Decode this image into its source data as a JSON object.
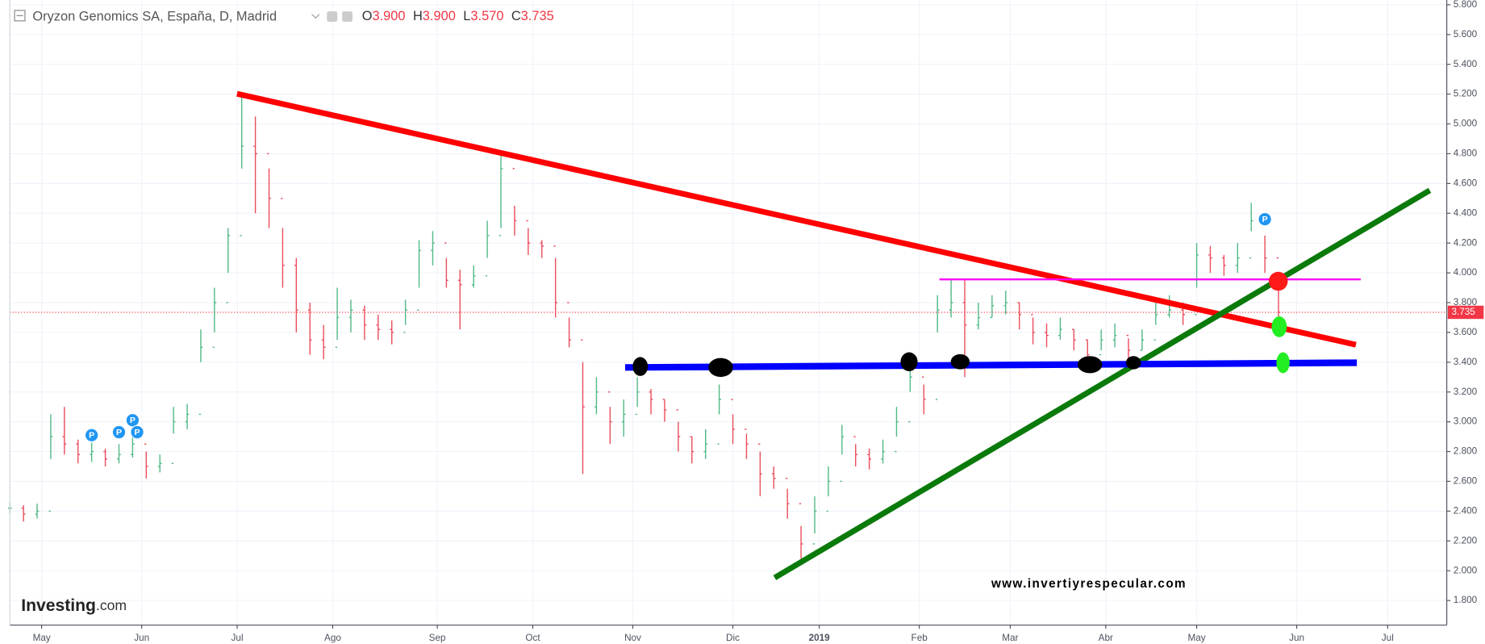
{
  "chart_data": {
    "type": "ohlc",
    "title": "Oryzon Genomics SA, España, D, Madrid",
    "legend_ohlc": [
      {
        "label": "O",
        "value": "3.900"
      },
      {
        "label": "H",
        "value": "3.900"
      },
      {
        "label": "L",
        "value": "3.570"
      },
      {
        "label": "C",
        "value": "3.735"
      }
    ],
    "x": [
      0,
      3,
      6,
      9,
      12,
      15,
      18,
      21,
      24,
      27,
      30,
      33,
      36,
      39,
      42,
      45,
      48,
      51,
      54,
      57,
      60,
      63,
      66,
      69,
      72,
      75,
      78,
      81,
      84,
      87,
      90,
      93,
      96,
      99,
      102,
      105,
      108,
      111,
      114,
      117,
      120,
      123,
      126,
      129,
      132,
      135,
      138,
      141,
      144,
      147,
      150,
      153,
      156,
      159,
      162,
      165,
      168,
      171,
      174,
      177,
      180,
      183,
      186,
      189,
      192,
      195,
      198,
      201,
      204,
      207,
      210,
      213,
      216,
      219,
      222,
      225,
      228,
      231,
      234,
      237,
      240,
      243,
      246,
      249,
      252,
      255,
      258,
      261,
      264,
      267,
      270,
      273,
      276,
      279
    ],
    "high": [
      2.46,
      2.44,
      2.45,
      3.05,
      3.1,
      2.88,
      2.86,
      2.82,
      2.85,
      2.92,
      2.8,
      2.78,
      3.1,
      3.12,
      3.62,
      3.9,
      4.3,
      5.18,
      5.05,
      4.7,
      4.3,
      4.1,
      3.8,
      3.65,
      3.9,
      3.82,
      3.78,
      3.72,
      3.68,
      3.82,
      4.22,
      4.28,
      4.1,
      4.02,
      4.05,
      4.35,
      4.82,
      4.45,
      4.3,
      4.22,
      4.1,
      3.7,
      3.4,
      3.3,
      3.1,
      3.15,
      3.3,
      3.22,
      3.15,
      3.0,
      2.9,
      2.95,
      3.25,
      3.05,
      2.92,
      2.8,
      2.7,
      2.55,
      2.3,
      2.5,
      2.7,
      2.98,
      2.85,
      2.82,
      2.88,
      3.1,
      3.4,
      3.25,
      3.85,
      3.95,
      3.95,
      3.8,
      3.85,
      3.88,
      3.8,
      3.7,
      3.66,
      3.7,
      3.62,
      3.55,
      3.62,
      3.66,
      3.56,
      3.62,
      3.8,
      3.85,
      3.8,
      4.2,
      4.18,
      4.12,
      4.2,
      4.47,
      4.25,
      3.9
    ],
    "low": [
      2.38,
      2.33,
      2.35,
      2.75,
      2.78,
      2.72,
      2.73,
      2.7,
      2.72,
      2.76,
      2.62,
      2.66,
      2.92,
      2.95,
      3.4,
      3.6,
      4.0,
      4.7,
      4.4,
      4.3,
      3.9,
      3.6,
      3.45,
      3.42,
      3.55,
      3.6,
      3.55,
      3.55,
      3.52,
      3.65,
      3.9,
      4.05,
      3.9,
      3.62,
      3.9,
      4.1,
      4.3,
      4.25,
      4.12,
      4.1,
      3.7,
      3.5,
      2.65,
      3.05,
      2.85,
      2.9,
      3.1,
      3.05,
      3.0,
      2.8,
      2.72,
      2.75,
      3.05,
      2.85,
      2.75,
      2.5,
      2.55,
      2.35,
      2.08,
      2.25,
      2.5,
      2.78,
      2.7,
      2.68,
      2.72,
      2.9,
      3.2,
      3.05,
      3.6,
      3.7,
      3.3,
      3.62,
      3.7,
      3.72,
      3.62,
      3.52,
      3.5,
      3.55,
      3.48,
      3.4,
      3.48,
      3.5,
      3.4,
      3.48,
      3.65,
      3.7,
      3.65,
      3.9,
      4.0,
      3.98,
      4.0,
      4.28,
      4.0,
      3.57
    ],
    "close": [
      2.42,
      2.38,
      2.4,
      2.9,
      2.85,
      2.78,
      2.8,
      2.75,
      2.78,
      2.85,
      2.7,
      2.72,
      3.0,
      3.05,
      3.5,
      3.8,
      4.25,
      4.85,
      4.8,
      4.5,
      4.05,
      3.75,
      3.55,
      3.5,
      3.7,
      3.75,
      3.65,
      3.62,
      3.6,
      3.75,
      4.15,
      4.2,
      3.95,
      3.92,
      3.98,
      4.25,
      4.7,
      4.35,
      4.2,
      4.18,
      3.8,
      3.55,
      3.1,
      3.2,
      3.0,
      3.05,
      3.2,
      3.15,
      3.08,
      2.9,
      2.8,
      2.85,
      3.15,
      2.95,
      2.85,
      2.65,
      2.62,
      2.45,
      2.18,
      2.4,
      2.6,
      2.9,
      2.78,
      2.75,
      2.8,
      3.0,
      3.3,
      3.15,
      3.75,
      3.8,
      3.65,
      3.7,
      3.78,
      3.8,
      3.72,
      3.6,
      3.58,
      3.62,
      3.55,
      3.45,
      3.55,
      3.58,
      3.48,
      3.55,
      3.72,
      3.75,
      3.72,
      4.12,
      4.1,
      4.05,
      4.1,
      4.35,
      4.1,
      3.735
    ],
    "up_color": "#53b987",
    "down_color": "#eb4d5c",
    "xlim": [
      0,
      316
    ],
    "xticks": [
      {
        "value": 7,
        "label": "May"
      },
      {
        "value": 29,
        "label": "Jun"
      },
      {
        "value": 50,
        "label": "Jul"
      },
      {
        "value": 71,
        "label": "Ago"
      },
      {
        "value": 94,
        "label": "Sep"
      },
      {
        "value": 115,
        "label": "Oct"
      },
      {
        "value": 137,
        "label": "Nov"
      },
      {
        "value": 159,
        "label": "Dic"
      },
      {
        "value": 178,
        "label": "2019"
      },
      {
        "value": 200,
        "label": "Feb"
      },
      {
        "value": 220,
        "label": "Mar"
      },
      {
        "value": 241,
        "label": "Abr"
      },
      {
        "value": 261,
        "label": "May"
      },
      {
        "value": 283,
        "label": "Jun"
      },
      {
        "value": 303,
        "label": "Jul"
      }
    ],
    "ylim": [
      1.635,
      5.832
    ],
    "yticks": [
      {
        "value": 1.8,
        "label": "1.800"
      },
      {
        "value": 2.0,
        "label": "2.000"
      },
      {
        "value": 2.2,
        "label": "2.200"
      },
      {
        "value": 2.4,
        "label": "2.400"
      },
      {
        "value": 2.6,
        "label": "2.600"
      },
      {
        "value": 2.8,
        "label": "2.800"
      },
      {
        "value": 3.0,
        "label": "3.000"
      },
      {
        "value": 3.2,
        "label": "3.200"
      },
      {
        "value": 3.4,
        "label": "3.400"
      },
      {
        "value": 3.6,
        "label": "3.600"
      },
      {
        "value": 3.8,
        "label": "3.800"
      },
      {
        "value": 4.0,
        "label": "4.000"
      },
      {
        "value": 4.2,
        "label": "4.200"
      },
      {
        "value": 4.4,
        "label": "4.400"
      },
      {
        "value": 4.6,
        "label": "4.600"
      },
      {
        "value": 4.8,
        "label": "4.800"
      },
      {
        "value": 5.0,
        "label": "5.000"
      },
      {
        "value": 5.2,
        "label": "5.200"
      },
      {
        "value": 5.4,
        "label": "5.400"
      },
      {
        "value": 5.6,
        "label": "5.600"
      },
      {
        "value": 5.8,
        "label": "5.800"
      }
    ],
    "grid": true,
    "last_price": {
      "value": 3.735,
      "label": "3.735"
    },
    "last_color": "#f23645",
    "events": [
      {
        "x": 18,
        "y": 2.91,
        "label": "P"
      },
      {
        "x": 24,
        "y": 2.93,
        "label": "P"
      },
      {
        "x": 27,
        "y": 3.01,
        "label": "P"
      },
      {
        "x": 28,
        "y": 2.93,
        "label": "P"
      },
      {
        "x": 276,
        "y": 4.36,
        "label": "P"
      }
    ],
    "watermark": "www.invertiyrespecular.com",
    "logo_name": "Investing",
    "logo_suffix": ".com"
  }
}
